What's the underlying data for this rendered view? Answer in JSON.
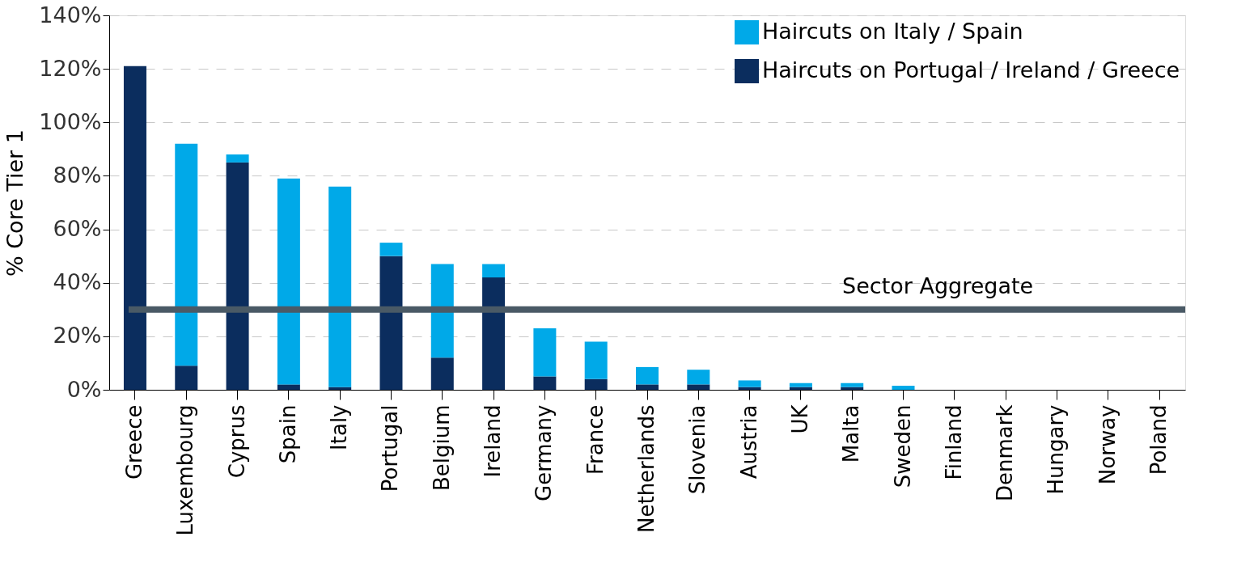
{
  "chart_data": {
    "type": "bar",
    "stacked": true,
    "ylabel": "% Core Tier 1",
    "categories": [
      "Greece",
      "Luxembourg",
      "Cyprus",
      "Spain",
      "Italy",
      "Portugal",
      "Belgium",
      "Ireland",
      "Germany",
      "France",
      "Netherlands",
      "Slovenia",
      "Austria",
      "UK",
      "Malta",
      "Sweden",
      "Finland",
      "Denmark",
      "Hungary",
      "Norway",
      "Poland"
    ],
    "series": [
      {
        "name": "Haircuts on Portugal / Ireland / Greece",
        "color": "#0b2d5e",
        "values": [
          121,
          9,
          85,
          2,
          1,
          50,
          12,
          42,
          5,
          4,
          2,
          2,
          1,
          1,
          1,
          0,
          0,
          0,
          0,
          0,
          0
        ]
      },
      {
        "name": "Haircuts on Italy / Spain",
        "color": "#00a9e8",
        "values": [
          0,
          83,
          3,
          77,
          75,
          5,
          35,
          5,
          18,
          14,
          6.5,
          5.5,
          2.5,
          1.5,
          1.5,
          1.5,
          0,
          0,
          0,
          0,
          0
        ]
      }
    ],
    "ylim": [
      0,
      140
    ],
    "yticks": [
      {
        "value": 0,
        "label": "0%"
      },
      {
        "value": 20,
        "label": "20%"
      },
      {
        "value": 40,
        "label": "40%"
      },
      {
        "value": 60,
        "label": "60%"
      },
      {
        "value": 80,
        "label": "80%"
      },
      {
        "value": 100,
        "label": "100%"
      },
      {
        "value": 120,
        "label": "120%"
      },
      {
        "value": 140,
        "label": "140%"
      }
    ],
    "ref_lines": [
      {
        "axis": "y",
        "value": 30,
        "label": "Sector Aggregate",
        "color": "#4a5a66"
      }
    ],
    "grid": "y",
    "legend": "top right"
  }
}
